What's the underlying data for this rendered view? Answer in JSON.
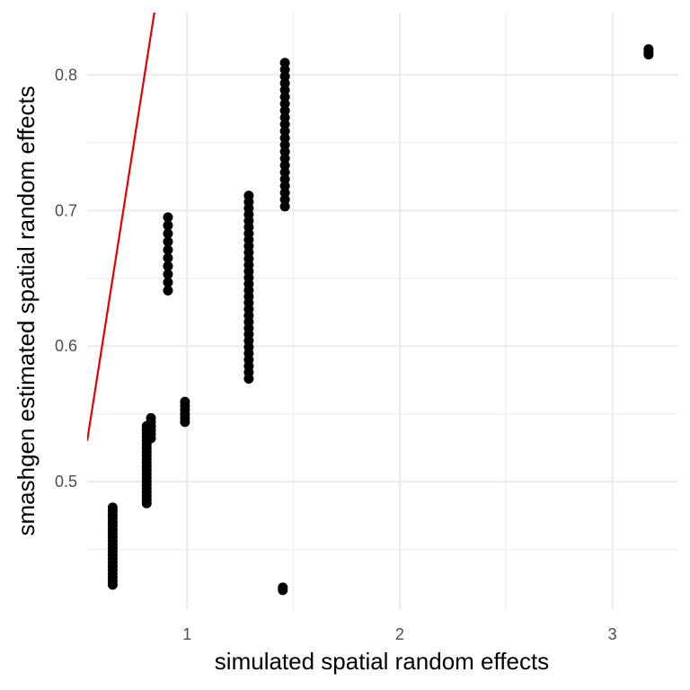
{
  "chart_data": {
    "type": "scatter",
    "title": "",
    "xlabel": "simulated spatial random effects",
    "ylabel": "smashgen estimated spatial random effects",
    "xlim": [
      0.53,
      3.31
    ],
    "ylim": [
      0.406,
      0.846
    ],
    "x_ticks": [
      1,
      2,
      3
    ],
    "y_ticks": [
      0.5,
      0.6,
      0.7,
      0.8
    ],
    "x_minor_ticks": [
      1.5,
      2.5
    ],
    "y_minor_ticks": [
      0.45,
      0.55,
      0.65,
      0.75
    ],
    "grid": true,
    "colors": {
      "points": "#000000",
      "reference_line": "#e60000",
      "grid": "#ebebeb"
    },
    "reference_line": {
      "label": "",
      "slope": 1,
      "intercept": 0
    },
    "series": [
      {
        "marker": "circle",
        "columns": [
          {
            "x": 0.65,
            "y_min": 0.424,
            "y_max": 0.481,
            "n": 22
          },
          {
            "x": 0.81,
            "y_min": 0.484,
            "y_max": 0.541,
            "n": 22
          },
          {
            "x": 0.83,
            "y_min": 0.532,
            "y_max": 0.547,
            "n": 6
          },
          {
            "x": 0.91,
            "y_min": 0.641,
            "y_max": 0.695,
            "n": 10
          },
          {
            "x": 0.99,
            "y_min": 0.544,
            "y_max": 0.559,
            "n": 6
          },
          {
            "x": 1.29,
            "y_min": 0.576,
            "y_max": 0.711,
            "n": 30
          },
          {
            "x": 1.46,
            "y_min": 0.703,
            "y_max": 0.809,
            "n": 22
          },
          {
            "x": 1.45,
            "y_min": 0.42,
            "y_max": 0.422,
            "n": 2
          },
          {
            "x": 3.17,
            "y_min": 0.815,
            "y_max": 0.819,
            "n": 3
          }
        ]
      }
    ]
  }
}
